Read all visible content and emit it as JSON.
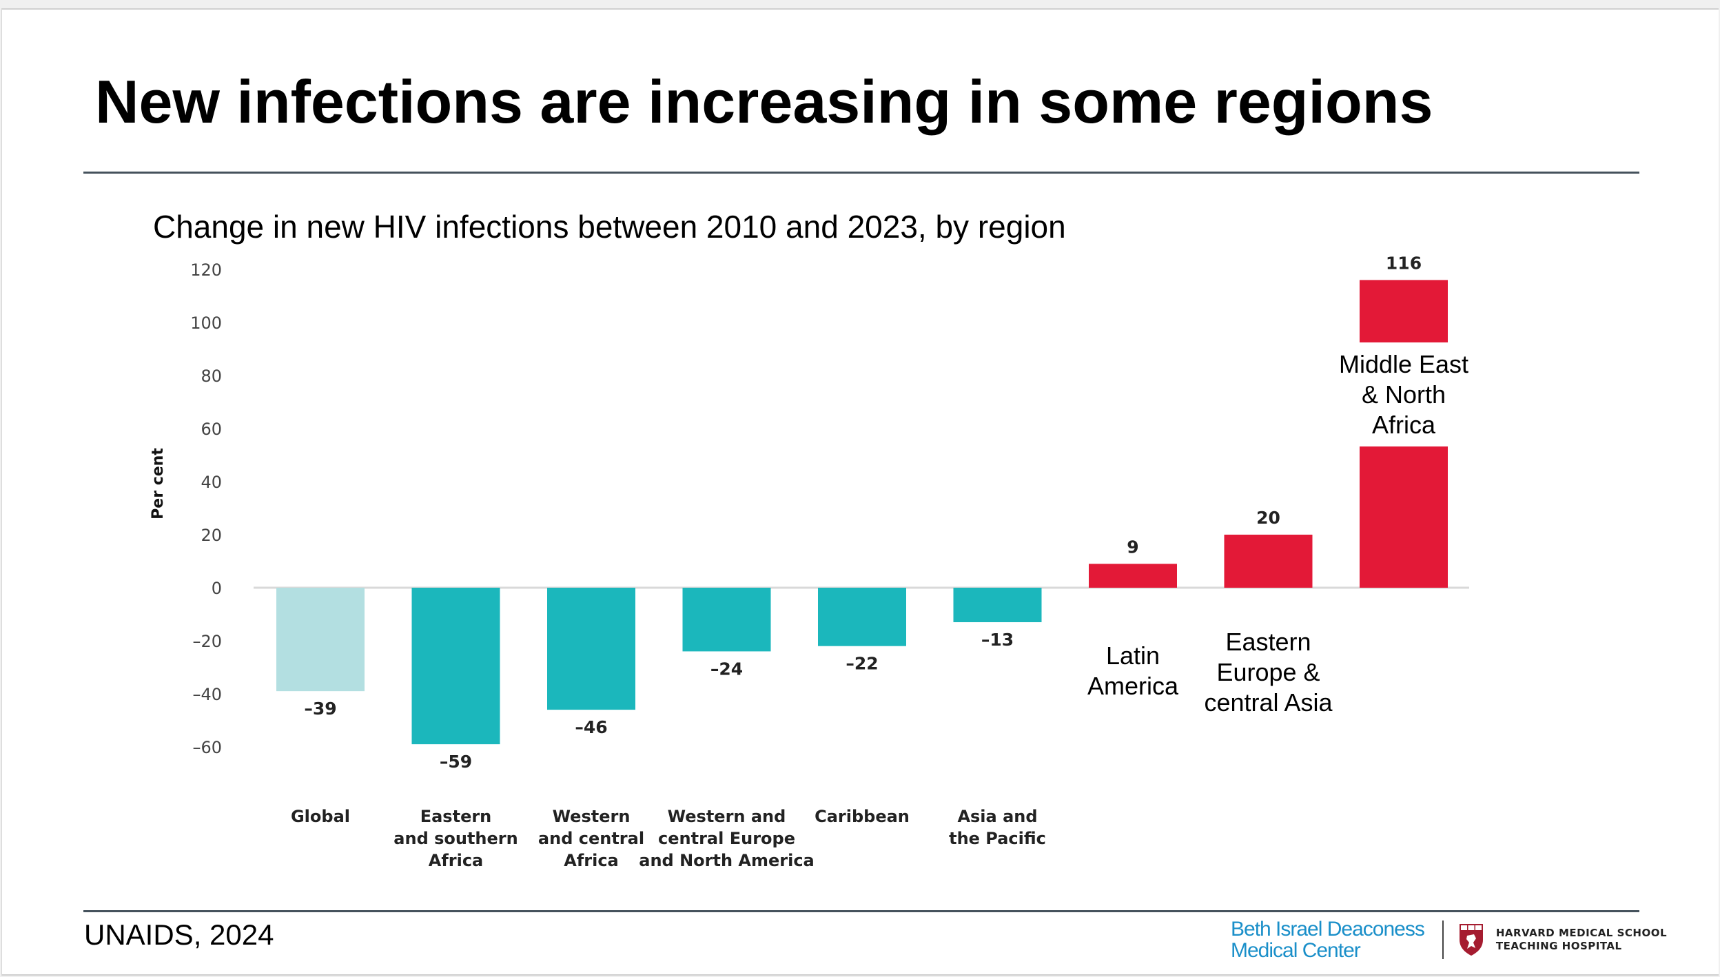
{
  "slide": {
    "title": "New infections are increasing in some regions",
    "subtitle": "Change in new HIV infections between 2010 and 2023, by region",
    "source": "UNAIDS, 2024",
    "logos": {
      "bidmc_line1": "Beth Israel Deaconess",
      "bidmc_line2": "Medical Center",
      "hms_line1": "HARVARD MEDICAL SCHOOL",
      "hms_line2": "TEACHING HOSPITAL"
    }
  },
  "colors": {
    "global_bar": "#b3dfe1",
    "decrease_bar": "#1bb7bc",
    "increase_bar": "#e31937",
    "baseline": "#d9d9d9",
    "rule": "#45525c",
    "bidmc_blue": "#1a8fc9"
  },
  "chart_data": {
    "type": "bar",
    "title": "Change in new HIV infections between 2010 and 2023, by region",
    "xlabel": "",
    "ylabel": "Per cent",
    "ylim": [
      -60,
      120
    ],
    "yticks": [
      120,
      100,
      80,
      60,
      40,
      20,
      0,
      -20,
      -40,
      -60
    ],
    "ytick_labels": [
      "120",
      "100",
      "80",
      "60",
      "40",
      "20",
      "0",
      "–20",
      "–40",
      "–60"
    ],
    "grid": false,
    "categories": [
      "Global",
      "Eastern and southern Africa",
      "Western and central Africa",
      "Western and central Europe and North America",
      "Caribbean",
      "Asia and the Pacific",
      "Latin America",
      "Eastern Europe & central Asia",
      "Middle East & North Africa"
    ],
    "category_label_lines": [
      [
        "Global"
      ],
      [
        "Eastern",
        "and southern",
        "Africa"
      ],
      [
        "Western",
        "and central",
        "Africa"
      ],
      [
        "Western and",
        "central Europe",
        "and North America"
      ],
      [
        "Caribbean"
      ],
      [
        "Asia and",
        "the Pacific"
      ],
      [
        "Latin",
        "America"
      ],
      [
        "Eastern",
        "Europe &",
        "central Asia"
      ],
      [
        "Middle East",
        "& North",
        "Africa"
      ]
    ],
    "values": [
      -39,
      -59,
      -46,
      -24,
      -22,
      -13,
      9,
      20,
      116
    ],
    "value_labels": [
      "–39",
      "–59",
      "–46",
      "–24",
      "–22",
      "–13",
      "9",
      "20",
      "116"
    ],
    "bar_color_keys": [
      "global_bar",
      "decrease_bar",
      "decrease_bar",
      "decrease_bar",
      "decrease_bar",
      "decrease_bar",
      "increase_bar",
      "increase_bar",
      "increase_bar"
    ]
  }
}
